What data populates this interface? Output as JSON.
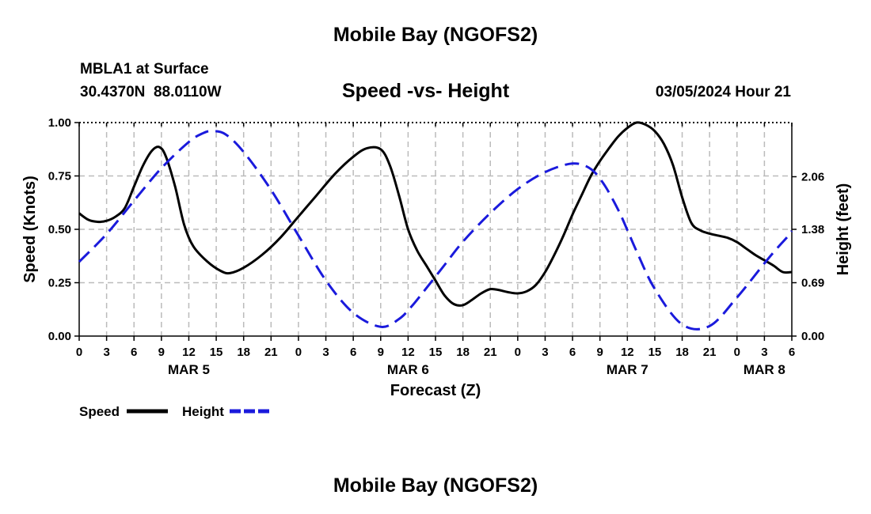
{
  "header": {
    "title": "Mobile Bay (NGOFS2)",
    "station": "MBLA1 at Surface",
    "coords": "30.4370N  88.0110W",
    "subtitle": "Speed -vs- Height",
    "datetime": "03/05/2024 Hour 21"
  },
  "footer": {
    "title": "Mobile Bay (NGOFS2)"
  },
  "colors": {
    "speed": "#000000",
    "height": "#1a1adc",
    "grid": "#bbbbbb"
  },
  "chart_data": {
    "type": "line",
    "xlabel": "Forecast (Z)",
    "ylabel": "Speed (Knots)",
    "y2label": "Height (feet)",
    "xlim": [
      0,
      78
    ],
    "ylim": [
      0,
      1
    ],
    "y2lim": [
      0,
      2.76
    ],
    "grid": true,
    "legend_position": "bottom-left",
    "x_ticks": [
      0,
      3,
      6,
      9,
      12,
      15,
      18,
      21,
      24,
      27,
      30,
      33,
      36,
      39,
      42,
      45,
      48,
      51,
      54,
      57,
      60,
      63,
      66,
      69,
      72,
      75,
      78
    ],
    "x_tick_labels": [
      "0",
      "3",
      "6",
      "9",
      "12",
      "15",
      "18",
      "21",
      "0",
      "3",
      "6",
      "9",
      "12",
      "15",
      "18",
      "21",
      "0",
      "3",
      "6",
      "9",
      "12",
      "15",
      "18",
      "21",
      "0",
      "3",
      "6"
    ],
    "date_labels": [
      {
        "x": 12,
        "label": "MAR 5"
      },
      {
        "x": 36,
        "label": "MAR 6"
      },
      {
        "x": 60,
        "label": "MAR 7"
      },
      {
        "x": 75,
        "label": "MAR 8"
      }
    ],
    "y_ticks": [
      0,
      0.25,
      0.5,
      0.75,
      1.0
    ],
    "y_tick_labels": [
      "0.00",
      "0.25",
      "0.50",
      "0.75",
      "1.00"
    ],
    "y2_ticks": [
      0,
      0.69,
      1.38,
      2.06
    ],
    "y2_tick_labels": [
      "0.00",
      "0.69",
      "1.38",
      "2.06"
    ],
    "series": [
      {
        "name": "Speed",
        "axis": "left",
        "style": "solid",
        "x": [
          0,
          1,
          2,
          3,
          4,
          5,
          6,
          7,
          8,
          8.8,
          9.5,
          10.5,
          11.5,
          12.5,
          14,
          15.5,
          16.5,
          18,
          20,
          22,
          24,
          26,
          28,
          30,
          31.5,
          33,
          34,
          35,
          36,
          37,
          38,
          39,
          40,
          41,
          42,
          43,
          44,
          45,
          46,
          47,
          48,
          49,
          50,
          51,
          52,
          53,
          54,
          55,
          56,
          57,
          58,
          59,
          60,
          61,
          62,
          63,
          64,
          65,
          66,
          67,
          68,
          69,
          70,
          71,
          72,
          73,
          74,
          75,
          76,
          77,
          78
        ],
        "values": [
          0.575,
          0.545,
          0.535,
          0.54,
          0.56,
          0.6,
          0.7,
          0.8,
          0.87,
          0.885,
          0.84,
          0.7,
          0.52,
          0.42,
          0.35,
          0.305,
          0.295,
          0.32,
          0.38,
          0.46,
          0.56,
          0.66,
          0.76,
          0.84,
          0.88,
          0.875,
          0.8,
          0.66,
          0.5,
          0.4,
          0.33,
          0.26,
          0.19,
          0.15,
          0.145,
          0.17,
          0.2,
          0.22,
          0.215,
          0.205,
          0.2,
          0.21,
          0.24,
          0.3,
          0.38,
          0.47,
          0.57,
          0.66,
          0.75,
          0.82,
          0.88,
          0.935,
          0.975,
          1.0,
          0.99,
          0.96,
          0.9,
          0.8,
          0.65,
          0.53,
          0.495,
          0.48,
          0.47,
          0.46,
          0.44,
          0.41,
          0.38,
          0.355,
          0.33,
          0.3,
          0.3
        ]
      },
      {
        "name": "Height",
        "axis": "right",
        "style": "dashed",
        "x": [
          0,
          3,
          6,
          9,
          12,
          13.5,
          14.5,
          16,
          18,
          21,
          24,
          27,
          30,
          33,
          35,
          36.5,
          38,
          40,
          42,
          45,
          48,
          51,
          54,
          56,
          57.5,
          59,
          60,
          61,
          63,
          66,
          69,
          72,
          75,
          76.5,
          77.5,
          78
        ],
        "values": [
          0.96,
          1.32,
          1.75,
          2.17,
          2.51,
          2.62,
          2.65,
          2.61,
          2.38,
          1.89,
          1.3,
          0.72,
          0.3,
          0.12,
          0.22,
          0.4,
          0.62,
          0.92,
          1.22,
          1.59,
          1.9,
          2.12,
          2.23,
          2.16,
          1.95,
          1.63,
          1.37,
          1.1,
          0.61,
          0.15,
          0.13,
          0.5,
          0.94,
          1.15,
          1.28,
          1.36
        ]
      }
    ],
    "legend": [
      {
        "label": "Speed",
        "series": "Speed"
      },
      {
        "label": "Height",
        "series": "Height"
      }
    ]
  }
}
